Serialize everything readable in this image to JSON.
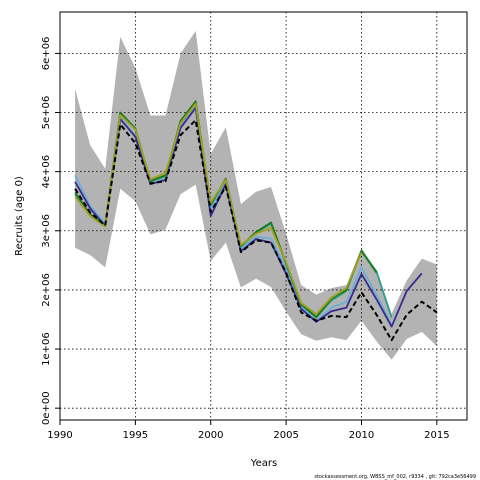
{
  "chart_data": {
    "type": "line",
    "title": "",
    "xlabel": "Years",
    "ylabel": "Recruits (age 0)",
    "xlim": [
      1990,
      2017
    ],
    "ylim": [
      -200000,
      6700000
    ],
    "x_ticks": [
      1990,
      1995,
      2000,
      2005,
      2010,
      2015
    ],
    "x_tick_labels": [
      "1990",
      "1995",
      "2000",
      "2005",
      "2010",
      "2015"
    ],
    "y_ticks": [
      0,
      1000000,
      2000000,
      3000000,
      4000000,
      5000000,
      6000000
    ],
    "y_tick_labels": [
      "0e+00",
      "1e+06",
      "2e+06",
      "3e+06",
      "4e+06",
      "5e+06",
      "6e+06"
    ],
    "grid": true,
    "footer": "stockassessment.org, WBSS_mf_002, r9334 , git: 792ca3e56499",
    "band": {
      "color": "#b3b3b3",
      "x": [
        1991,
        1992,
        1993,
        1994,
        1995,
        1996,
        1997,
        1998,
        1999,
        2000,
        2001,
        2002,
        2003,
        2004,
        2005,
        2006,
        2007,
        2008,
        2009,
        2010,
        2011,
        2012,
        2013,
        2014,
        2015
      ],
      "upper": [
        5400000,
        4450000,
        4050000,
        6280000,
        5750000,
        4950000,
        4950000,
        6000000,
        6380000,
        4300000,
        4750000,
        3450000,
        3660000,
        3740000,
        2950000,
        2080000,
        1920000,
        2030000,
        2080000,
        2710000,
        2330000,
        1600000,
        2160000,
        2530000,
        2430000
      ],
      "lower": [
        2710000,
        2590000,
        2380000,
        3710000,
        3500000,
        2940000,
        3020000,
        3620000,
        3780000,
        2490000,
        2800000,
        2040000,
        2190000,
        2050000,
        1630000,
        1250000,
        1140000,
        1200000,
        1150000,
        1480000,
        1130000,
        820000,
        1170000,
        1290000,
        1050000
      ]
    },
    "series": [
      {
        "color": "#6baed6",
        "x": [
          1991,
          1992,
          1993,
          1994,
          1995,
          1996,
          1997,
          1998,
          1999,
          2000,
          2001,
          2002,
          2003,
          2004,
          2005,
          2006,
          2007,
          2008,
          2009,
          2010,
          2011,
          2012
        ],
        "values": [
          3940000,
          3420000,
          3120000,
          4920000,
          4600000,
          3800000,
          3870000,
          4760000,
          5130000,
          3360000,
          3820000,
          2680000,
          2900000,
          2870000,
          2350000,
          1720000,
          1470000,
          1700000,
          1800000,
          2380000,
          1920000,
          1400000
        ]
      },
      {
        "color": "#3b2a8f",
        "x": [
          1991,
          1992,
          1993,
          1994,
          1995,
          1996,
          1997,
          1998,
          1999,
          2000,
          2001,
          2002,
          2003,
          2004,
          2005,
          2006,
          2007,
          2008,
          2009,
          2010,
          2011,
          2012,
          2013,
          2014
        ],
        "values": [
          3830000,
          3380000,
          3080000,
          4890000,
          4590000,
          3790000,
          3860000,
          4740000,
          5080000,
          3250000,
          3790000,
          2650000,
          2860000,
          2800000,
          2270000,
          1680000,
          1460000,
          1640000,
          1700000,
          2270000,
          1840000,
          1380000,
          1980000,
          2280000
        ]
      },
      {
        "color": "#2ca089",
        "x": [
          1991,
          1992,
          1993,
          1994,
          1995,
          1996,
          1997,
          1998,
          1999,
          2000,
          2001,
          2002,
          2003,
          2004,
          2005,
          2006,
          2007,
          2008,
          2009,
          2010,
          2011,
          2012
        ],
        "values": [
          3620000,
          3260000,
          3080000,
          4980000,
          4720000,
          3830000,
          3920000,
          4840000,
          5170000,
          3430000,
          3870000,
          2730000,
          2960000,
          3120000,
          2430000,
          1750000,
          1530000,
          1820000,
          1980000,
          2650000,
          2310000,
          1530000
        ]
      },
      {
        "color": "#1a7a1a",
        "x": [
          1991,
          1992,
          1993,
          1994,
          1995,
          1996,
          1997,
          1998,
          1999,
          2000,
          2001,
          2002,
          2003,
          2004,
          2005,
          2006,
          2007,
          2008,
          2009,
          2010,
          2011
        ],
        "values": [
          3650000,
          3280000,
          3090000,
          5000000,
          4730000,
          3840000,
          3940000,
          4860000,
          5190000,
          3450000,
          3880000,
          2740000,
          2980000,
          3140000,
          2450000,
          1760000,
          1540000,
          1850000,
          2000000,
          2660000,
          2290000
        ]
      },
      {
        "color": "#a4a020",
        "x": [
          1991,
          1992,
          1993,
          1994,
          1995,
          1996,
          1997,
          1998,
          1999,
          2000,
          2001,
          2002,
          2003,
          2004,
          2005,
          2006,
          2007,
          2008,
          2009,
          2010
        ],
        "values": [
          3580000,
          3250000,
          3070000,
          4960000,
          4710000,
          3870000,
          3980000,
          4820000,
          5150000,
          3480000,
          3860000,
          2760000,
          2950000,
          3050000,
          2470000,
          1780000,
          1590000,
          1870000,
          2030000,
          2630000
        ]
      },
      {
        "color": "#000000",
        "dashed": true,
        "x": [
          1991,
          1992,
          1993,
          1994,
          1995,
          1996,
          1997,
          1998,
          1999,
          2000,
          2001,
          2002,
          2003,
          2004,
          2005,
          2006,
          2007,
          2008,
          2009,
          2010,
          2011,
          2012,
          2013,
          2014,
          2015
        ],
        "values": [
          3710000,
          3310000,
          3090000,
          4800000,
          4480000,
          3800000,
          3840000,
          4620000,
          4870000,
          3320000,
          3750000,
          2640000,
          2840000,
          2800000,
          2290000,
          1620000,
          1480000,
          1560000,
          1540000,
          1960000,
          1580000,
          1150000,
          1580000,
          1800000,
          1620000
        ]
      }
    ]
  }
}
